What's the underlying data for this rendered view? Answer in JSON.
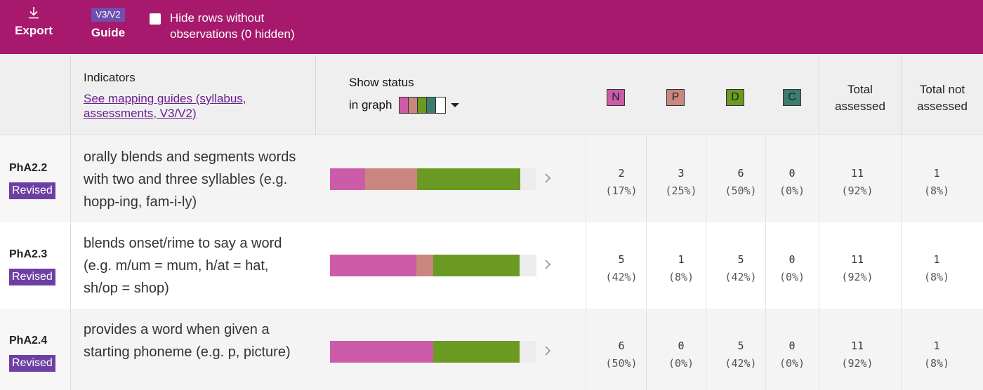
{
  "toolbar": {
    "export_label": "Export",
    "guide_badge": "V3/V2",
    "guide_label": "Guide",
    "hide_rows_label": "Hide rows without observations (0 hidden)"
  },
  "header": {
    "indicators_title": "Indicators",
    "mapping_link": "See mapping guides (syllabus, assessments, V3/V2)",
    "show_status_line1": "Show status",
    "show_status_line2": "in graph",
    "levels": [
      "N",
      "P",
      "D",
      "C"
    ],
    "total_assessed_l1": "Total",
    "total_assessed_l2": "assessed",
    "total_not_l1": "Total not",
    "total_not_l2": "assessed"
  },
  "colors": {
    "brand": "#a6196c",
    "N": "#cc5ca8",
    "P": "#c98780",
    "D": "#6b9a22",
    "C": "#3f7c70",
    "revised_badge": "#6e3fa3",
    "link": "#6b1e8e"
  },
  "icons": {
    "export": "download-icon",
    "row_expand": "chevron-right-icon",
    "status_menu": "caret-down-icon"
  },
  "rows": [
    {
      "code": "PhA2.2",
      "badge": "Revised",
      "text": "orally blends and segments words with two and three syllables (e.g. hopp-ing, fam-i-ly)",
      "bar": {
        "N": 0.17,
        "P": 0.25,
        "D": 0.5,
        "C": 0
      },
      "N": "2",
      "N_pct": "(17%)",
      "P": "3",
      "P_pct": "(25%)",
      "D": "6",
      "D_pct": "(50%)",
      "C": "0",
      "C_pct": "(0%)",
      "total": "11",
      "total_pct": "(92%)",
      "not": "1",
      "not_pct": "(8%)"
    },
    {
      "code": "PhA2.3",
      "badge": "Revised",
      "text": "blends onset/rime to say a word (e.g. m/um = mum, h/at = hat, sh/op = shop)",
      "bar": {
        "N": 0.42,
        "P": 0.08,
        "D": 0.42,
        "C": 0
      },
      "N": "5",
      "N_pct": "(42%)",
      "P": "1",
      "P_pct": "(8%)",
      "D": "5",
      "D_pct": "(42%)",
      "C": "0",
      "C_pct": "(0%)",
      "total": "11",
      "total_pct": "(92%)",
      "not": "1",
      "not_pct": "(8%)"
    },
    {
      "code": "PhA2.4",
      "badge": "Revised",
      "text": "provides a word when given a starting phoneme (e.g. p, picture)",
      "bar": {
        "N": 0.5,
        "P": 0,
        "D": 0.42,
        "C": 0
      },
      "N": "6",
      "N_pct": "(50%)",
      "P": "0",
      "P_pct": "(0%)",
      "D": "5",
      "D_pct": "(42%)",
      "C": "0",
      "C_pct": "(0%)",
      "total": "11",
      "total_pct": "(92%)",
      "not": "1",
      "not_pct": "(8%)"
    }
  ]
}
